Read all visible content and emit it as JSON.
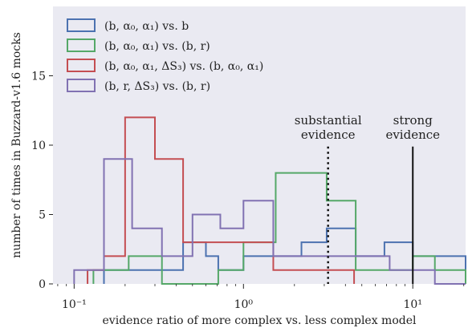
{
  "chart_data": {
    "type": "step-histogram",
    "xscale": "log",
    "xlim": [
      0.075,
      20.5
    ],
    "ylim": [
      0,
      20
    ],
    "xlabel": "evidence ratio of more complex vs. less complex model",
    "ylabel": "number of times in Buzzard-v1.6 mocks",
    "xtick_values": [
      0.1,
      1,
      10
    ],
    "xtick_labels": [
      "10⁻¹",
      "10⁰",
      "10¹"
    ],
    "ytick_values": [
      0,
      5,
      10,
      15
    ],
    "ytick_labels": [
      "0",
      "5",
      "10",
      "15"
    ],
    "grid": false,
    "background": "#eaeaf2",
    "legend_position": "top-left",
    "series": [
      {
        "name": "(b, α₀, α₁) vs. b",
        "color": "#4c72b0",
        "edges": [
          0.15,
          0.3,
          0.44,
          0.6,
          0.71,
          1.0,
          1.5,
          2.2,
          3.1,
          4.6,
          6.8,
          10.0,
          13.5,
          20.5
        ],
        "counts": [
          1,
          1,
          3,
          2,
          1,
          2,
          2,
          3,
          4,
          2,
          3,
          2,
          2
        ]
      },
      {
        "name": "(b, α₀, α₁) vs. (b, r)",
        "color": "#55a868",
        "edges": [
          0.13,
          0.21,
          0.33,
          0.71,
          1.0,
          1.55,
          3.1,
          4.6,
          10.0,
          13.5,
          20.5
        ],
        "counts": [
          1,
          2,
          0,
          1,
          3,
          8,
          6,
          1,
          2,
          1
        ]
      },
      {
        "name": "(b, α₀, α₁, ΔS₃) vs. (b, α₀, α₁)",
        "color": "#c44e52",
        "edges": [
          0.12,
          0.15,
          0.2,
          0.3,
          0.44,
          1.5,
          2.0,
          3.1,
          4.5
        ],
        "counts": [
          1,
          2,
          12,
          9,
          3,
          1,
          1,
          1
        ]
      },
      {
        "name": "(b, r, ΔS₃) vs. (b, r)",
        "color": "#8172b2",
        "edges": [
          0.1,
          0.15,
          0.22,
          0.33,
          0.5,
          0.73,
          1.0,
          1.5,
          7.3,
          13.5,
          20.5
        ],
        "counts": [
          1,
          9,
          4,
          2,
          5,
          4,
          6,
          2,
          1,
          0
        ]
      }
    ],
    "reference_lines": [
      {
        "x": 3.16,
        "style": "dotted",
        "label_lines": [
          "substantial",
          "evidence"
        ]
      },
      {
        "x": 10,
        "style": "solid",
        "label_lines": [
          "strong",
          "evidence"
        ]
      }
    ]
  }
}
